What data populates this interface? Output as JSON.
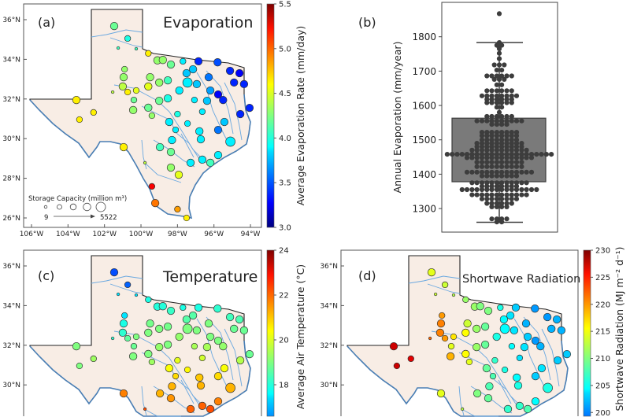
{
  "chart_data": [
    {
      "type": "scatter",
      "panel": "(a)",
      "title": "Evaporation",
      "colorbar_label": "Average Evaporation Rate (mm/day)",
      "colorbar_range": [
        3.0,
        5.5
      ],
      "colorbar_ticks": [
        "3.0",
        "3.5",
        "4.0",
        "4.5",
        "5.0",
        "5.5"
      ],
      "colormap": "jet",
      "value_column": "evap",
      "lat_ticks": [
        "36°N",
        "34°N",
        "32°N",
        "30°N",
        "28°N",
        "26°N"
      ],
      "lon_ticks": [
        "106°W",
        "104°W",
        "102°W",
        "100°W",
        "98°W",
        "96°W",
        "94°W"
      ],
      "size_legend": {
        "title": "Storage Capacity (million m³)",
        "min_label": "9",
        "max_label": "5522"
      }
    },
    {
      "type": "box",
      "panel": "(b)",
      "ylabel": "Annual Evaporation (mm/year)",
      "y_ticks": [
        "1300",
        "1400",
        "1500",
        "1600",
        "1700",
        "1800"
      ],
      "ylim": [
        1235,
        1895
      ],
      "box": {
        "whisker_low": 1260,
        "q1": 1378,
        "median": 1458,
        "q3": 1563,
        "whisker_high": 1783,
        "outliers": [
          1867
        ]
      },
      "swarm": [
        [
          1867,
          1
        ],
        [
          1783,
          1
        ],
        [
          1775,
          2
        ],
        [
          1765,
          1
        ],
        [
          1752,
          1
        ],
        [
          1736,
          1
        ],
        [
          1718,
          3
        ],
        [
          1703,
          2
        ],
        [
          1686,
          6
        ],
        [
          1676,
          3
        ],
        [
          1660,
          2
        ],
        [
          1643,
          6
        ],
        [
          1628,
          8
        ],
        [
          1618,
          6
        ],
        [
          1608,
          6
        ],
        [
          1595,
          2
        ],
        [
          1580,
          1
        ],
        [
          1568,
          6
        ],
        [
          1555,
          10
        ],
        [
          1545,
          4
        ],
        [
          1522,
          8
        ],
        [
          1512,
          8
        ],
        [
          1500,
          8
        ],
        [
          1490,
          10
        ],
        [
          1480,
          10
        ],
        [
          1470,
          12
        ],
        [
          1458,
          22
        ],
        [
          1448,
          14
        ],
        [
          1435,
          10
        ],
        [
          1422,
          10
        ],
        [
          1406,
          14
        ],
        [
          1395,
          8
        ],
        [
          1375,
          12
        ],
        [
          1365,
          8
        ],
        [
          1355,
          16
        ],
        [
          1340,
          12
        ],
        [
          1328,
          8
        ],
        [
          1315,
          6
        ],
        [
          1305,
          4
        ],
        [
          1270,
          4
        ],
        [
          1261,
          2
        ]
      ]
    },
    {
      "type": "scatter",
      "panel": "(c)",
      "title": "Temperature",
      "colorbar_label": "Average Air Temperature (°C)",
      "colorbar_range": [
        14,
        24
      ],
      "colorbar_ticks": [
        "18",
        "20",
        "22",
        "24"
      ],
      "colormap": "jet",
      "value_column": "temp",
      "lat_ticks": [
        "36°N",
        "34°N",
        "32°N",
        "30°N"
      ]
    },
    {
      "type": "scatter",
      "panel": "(d)",
      "title": "Shortwave Radiation",
      "colorbar_label": "Shortwave Radiation (MJ m⁻² d⁻¹)",
      "colorbar_range": [
        190,
        230
      ],
      "colorbar_ticks": [
        "200",
        "205",
        "210",
        "215",
        "220",
        "225",
        "230"
      ],
      "colormap": "jet",
      "value_column": "srad",
      "lat_ticks": [
        "36°N",
        "34°N",
        "32°N",
        "30°N"
      ]
    }
  ],
  "reservoirs": {
    "columns": [
      "lon",
      "lat",
      "size_class",
      "evap",
      "temp",
      "srad"
    ],
    "rows": [
      [
        -101.47,
        35.68,
        4,
        4.2,
        16.0,
        214
      ],
      [
        -100.73,
        35.05,
        3,
        4.0,
        16.2,
        213
      ],
      [
        -101.25,
        34.57,
        1,
        4.1,
        17.5,
        213
      ],
      [
        -100.26,
        34.53,
        1,
        4.1,
        17.5,
        212
      ],
      [
        -99.6,
        34.3,
        3,
        4.6,
        18.0,
        211
      ],
      [
        -99.1,
        33.95,
        4,
        4.3,
        18.1,
        211
      ],
      [
        -98.8,
        33.97,
        4,
        4.3,
        18.1,
        210
      ],
      [
        -98.36,
        33.74,
        4,
        4.2,
        18.3,
        210
      ],
      [
        -97.7,
        33.9,
        3,
        3.9,
        18.0,
        206
      ],
      [
        -96.85,
        33.9,
        4,
        3.4,
        18.0,
        203
      ],
      [
        -95.8,
        33.85,
        4,
        3.5,
        18.2,
        201
      ],
      [
        -94.6,
        33.3,
        4,
        3.3,
        18.5,
        202
      ],
      [
        -94.35,
        32.75,
        4,
        3.4,
        18.8,
        202
      ],
      [
        -94.05,
        31.55,
        4,
        3.4,
        18.8,
        203
      ],
      [
        -94.56,
        31.24,
        4,
        3.4,
        19.5,
        203
      ],
      [
        -95.1,
        29.85,
        5,
        3.9,
        21.0,
        206
      ],
      [
        -95.77,
        32.23,
        4,
        3.3,
        19.0,
        201
      ],
      [
        -96.29,
        33.1,
        4,
        3.6,
        19.0,
        202
      ],
      [
        -97.15,
        33.5,
        4,
        3.8,
        18.6,
        204
      ],
      [
        -97.45,
        32.83,
        5,
        3.9,
        19.0,
        205
      ],
      [
        -97.9,
        32.43,
        4,
        3.9,
        19.2,
        206
      ],
      [
        -98.53,
        32.94,
        4,
        4.1,
        18.9,
        209
      ],
      [
        -99.0,
        32.83,
        4,
        4.3,
        19.0,
        211
      ],
      [
        -99.5,
        33.1,
        4,
        4.3,
        18.9,
        213
      ],
      [
        -99.6,
        32.63,
        4,
        4.5,
        19.0,
        215
      ],
      [
        -100.26,
        32.43,
        3,
        4.5,
        19.0,
        216
      ],
      [
        -100.73,
        32.35,
        3,
        4.6,
        18.7,
        219
      ],
      [
        -101.0,
        32.63,
        4,
        4.4,
        18.2,
        220
      ],
      [
        -100.95,
        33.1,
        4,
        4.3,
        18.0,
        220
      ],
      [
        -100.9,
        33.5,
        3,
        4.3,
        17.5,
        219
      ],
      [
        -101.55,
        32.35,
        1,
        4.4,
        18.2,
        221
      ],
      [
        -100.43,
        31.44,
        4,
        4.3,
        19.0,
        218
      ],
      [
        -103.54,
        31.95,
        4,
        4.6,
        19.0,
        227
      ],
      [
        -103.37,
        30.96,
        3,
        4.6,
        19.0,
        227
      ],
      [
        -102.6,
        31.32,
        3,
        4.6,
        19.3,
        226
      ],
      [
        -99.4,
        31.16,
        3,
        4.3,
        19.3,
        214
      ],
      [
        -99.6,
        31.56,
        4,
        4.2,
        19.0,
        215
      ],
      [
        -100.39,
        31.95,
        3,
        4.2,
        18.8,
        214
      ],
      [
        -99.0,
        31.91,
        4,
        4.2,
        19.2,
        211
      ],
      [
        -98.53,
        32.03,
        4,
        4.0,
        19.0,
        209
      ],
      [
        -98.0,
        31.24,
        3,
        4.0,
        20.0,
        207
      ],
      [
        -98.45,
        30.84,
        4,
        3.9,
        20.2,
        209
      ],
      [
        -98.1,
        30.44,
        3,
        3.9,
        20.6,
        208
      ],
      [
        -97.45,
        30.76,
        3,
        3.9,
        20.3,
        206
      ],
      [
        -96.8,
        30.37,
        4,
        3.9,
        20.8,
        205
      ],
      [
        -95.77,
        30.44,
        4,
        3.6,
        20.6,
        203
      ],
      [
        -95.43,
        30.84,
        4,
        3.8,
        20.2,
        204
      ],
      [
        -96.64,
        31.36,
        3,
        3.9,
        19.8,
        204
      ],
      [
        -96.38,
        31.91,
        4,
        3.8,
        19.4,
        204
      ],
      [
        -97.07,
        31.95,
        3,
        3.9,
        19.4,
        205
      ],
      [
        -98.3,
        29.93,
        4,
        3.9,
        21.0,
        208
      ],
      [
        -98.96,
        29.57,
        4,
        4.1,
        21.0,
        210
      ],
      [
        -98.36,
        29.33,
        4,
        4.2,
        21.3,
        209
      ],
      [
        -97.28,
        28.78,
        4,
        3.9,
        21.8,
        207
      ],
      [
        -96.64,
        28.94,
        4,
        3.9,
        21.8,
        207
      ],
      [
        -96.2,
        28.78,
        4,
        4.1,
        22.0,
        208
      ],
      [
        -95.77,
        29.17,
        4,
        3.9,
        21.5,
        205
      ],
      [
        -96.72,
        29.97,
        4,
        3.9,
        21.0,
        206
      ],
      [
        -98.36,
        28.54,
        4,
        4.3,
        22.3,
        211
      ],
      [
        -97.93,
        28.18,
        4,
        4.5,
        22.5,
        212
      ],
      [
        -100.95,
        29.57,
        4,
        4.6,
        21.5,
        214
      ],
      [
        -99.4,
        27.59,
        3,
        5.2,
        23.3,
        216
      ],
      [
        -99.22,
        26.75,
        4,
        4.9,
        23.5,
        216
      ],
      [
        -98.0,
        26.44,
        3,
        4.8,
        23.6,
        215
      ],
      [
        -97.5,
        26.0,
        3,
        4.6,
        23.8,
        214
      ],
      [
        -99.78,
        28.78,
        1,
        4.4,
        22.0,
        212
      ],
      [
        -95.12,
        33.42,
        4,
        3.4,
        18.4,
        201
      ],
      [
        -94.9,
        32.83,
        4,
        3.4,
        18.8,
        202
      ],
      [
        -95.5,
        31.95,
        4,
        3.4,
        19.2,
        202
      ],
      [
        -96.2,
        32.43,
        4,
        3.7,
        19.0,
        203
      ],
      [
        -96.94,
        32.75,
        4,
        3.8,
        19.0,
        204
      ],
      [
        -97.5,
        33.3,
        4,
        3.8,
        18.6,
        205
      ]
    ]
  }
}
